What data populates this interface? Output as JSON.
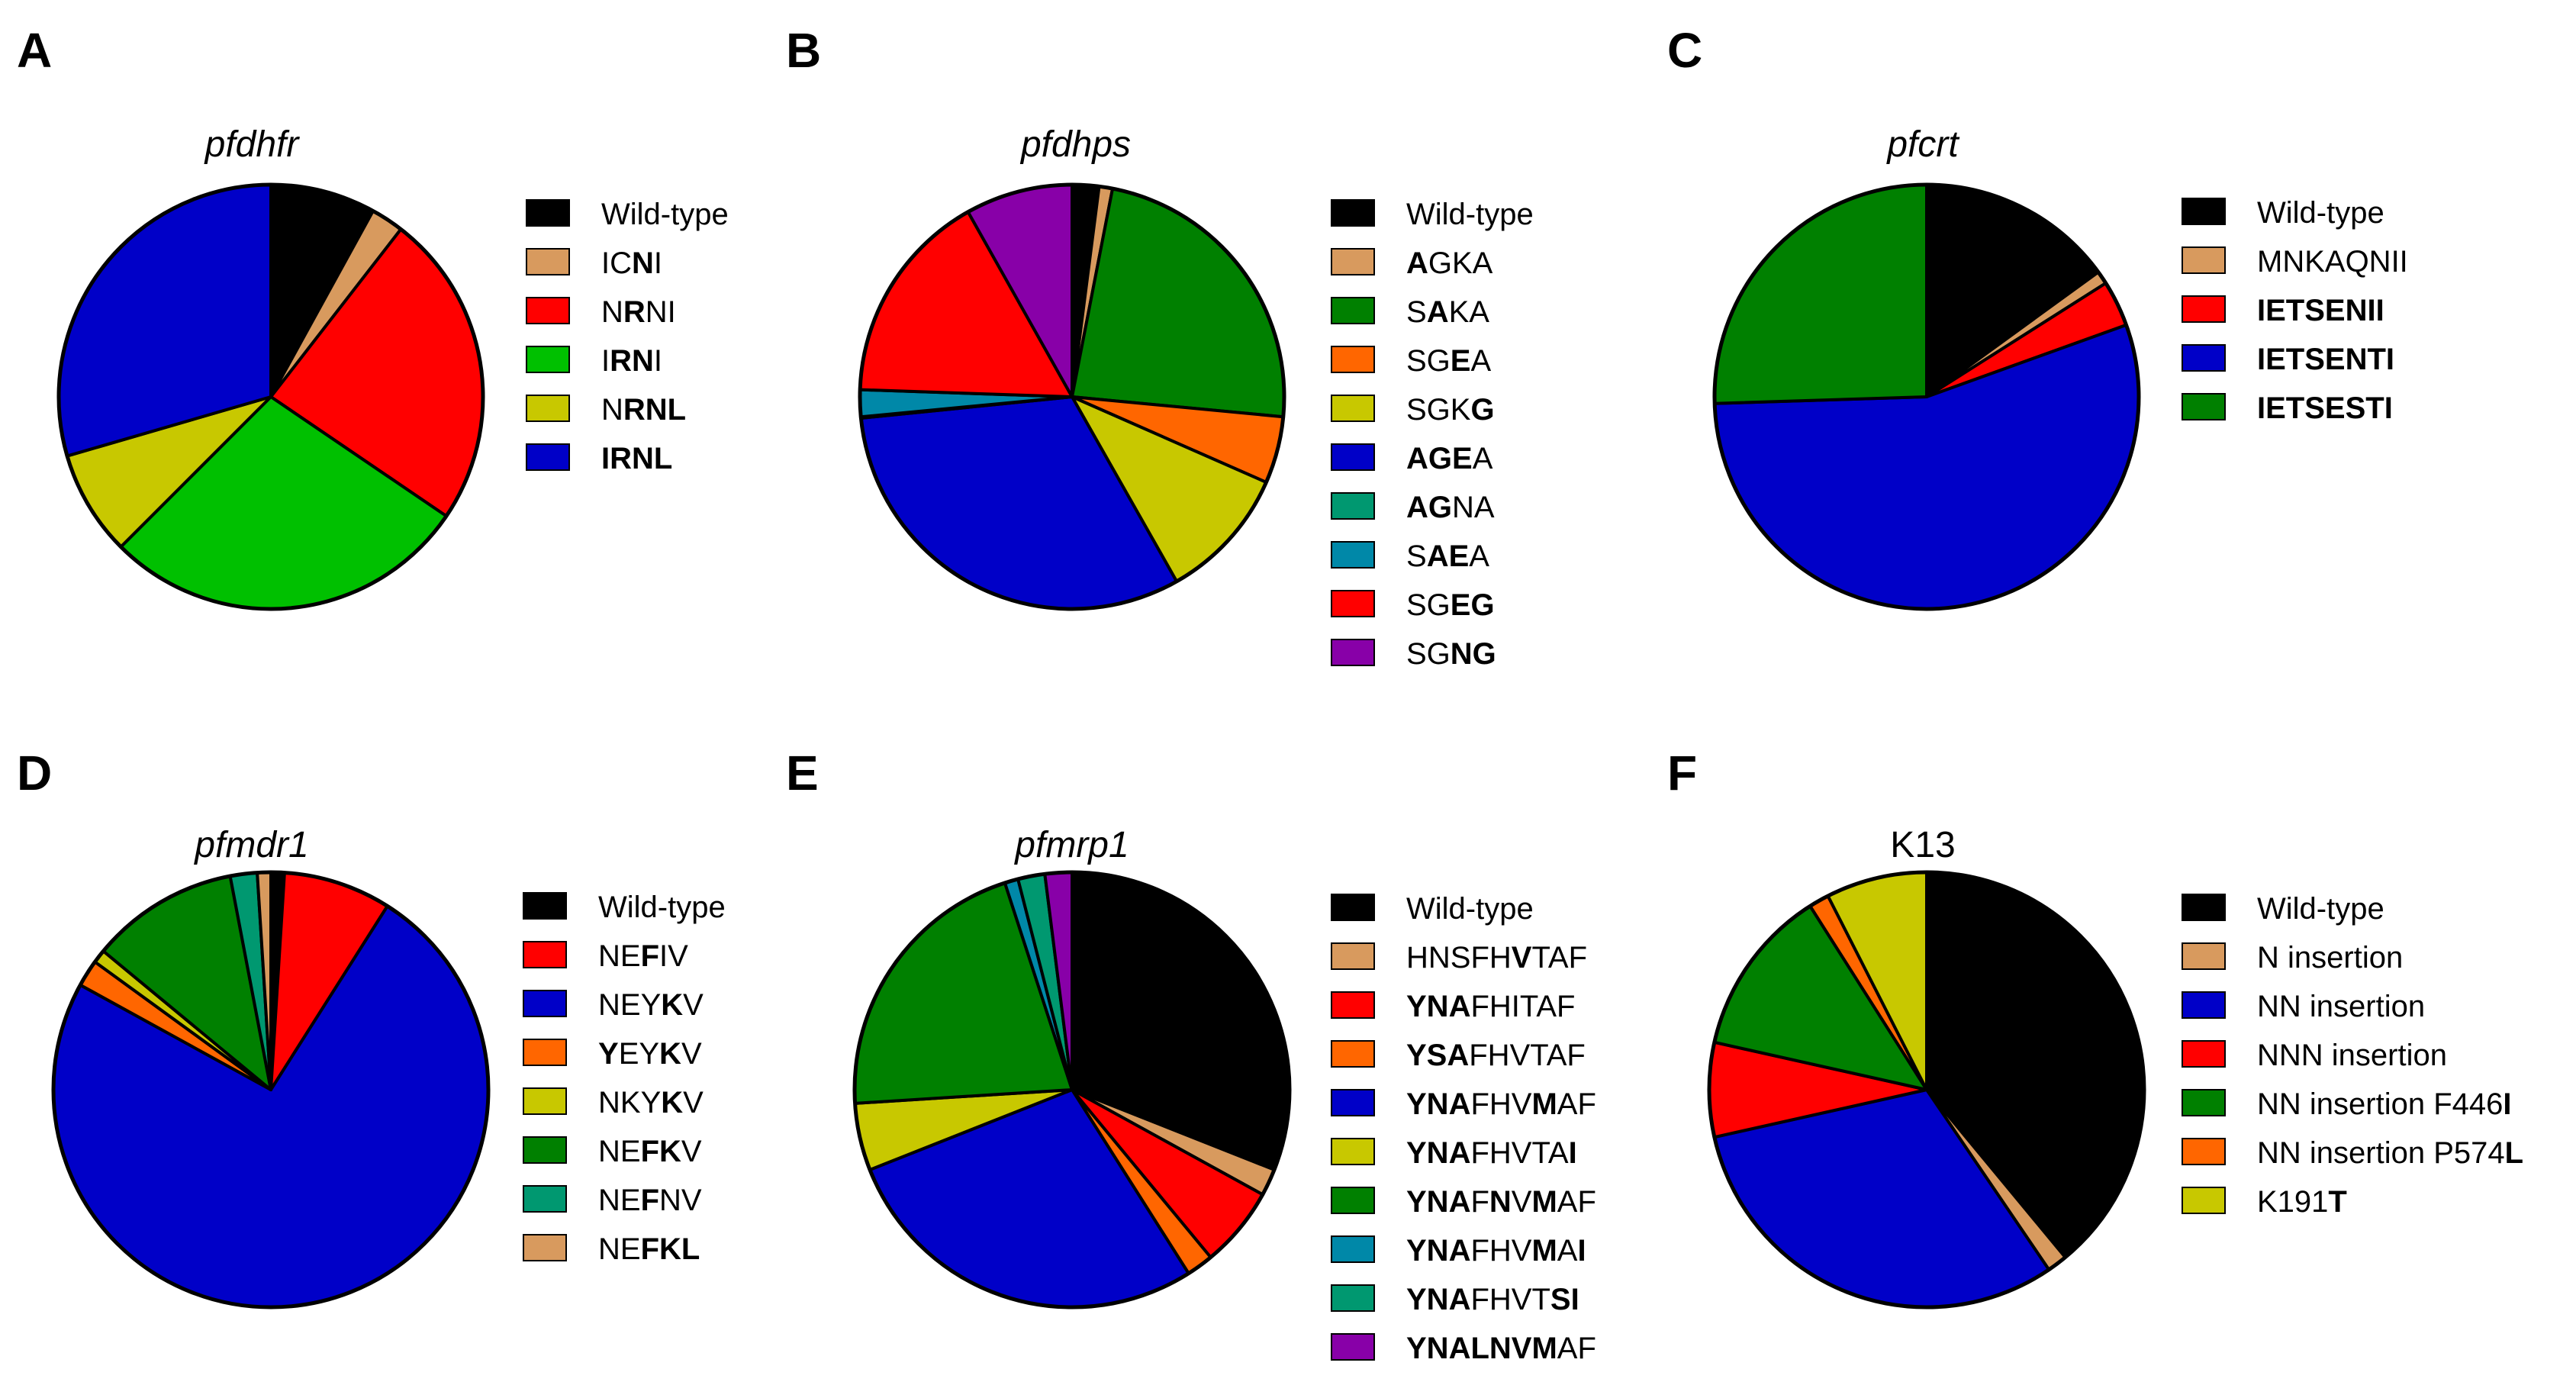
{
  "chart_data": [
    {
      "type": "pie",
      "panel": "A",
      "title": "pfdhfr",
      "title_italic": true,
      "slices": [
        {
          "label": "Wild-type",
          "parts": [
            [
              "Wild-type",
              false
            ]
          ],
          "value": 8,
          "color": "#000000"
        },
        {
          "label": "ICNI",
          "parts": [
            [
              "IC",
              false
            ],
            [
              "N",
              true
            ],
            [
              "I",
              false
            ]
          ],
          "value": 2.5,
          "color": "#D89A5E"
        },
        {
          "label": "NRNI",
          "parts": [
            [
              "N",
              false
            ],
            [
              "R",
              true
            ],
            [
              "NI",
              false
            ]
          ],
          "value": 24,
          "color": "#FF0000"
        },
        {
          "label": "IRNI",
          "parts": [
            [
              "I",
              false
            ],
            [
              "RN",
              true
            ],
            [
              "I",
              false
            ]
          ],
          "value": 28,
          "color": "#00C000"
        },
        {
          "label": "NRNL",
          "parts": [
            [
              "N",
              false
            ],
            [
              "RNL",
              true
            ]
          ],
          "value": 8,
          "color": "#C8C800"
        },
        {
          "label": "IRNL",
          "parts": [
            [
              "IRNL",
              true
            ]
          ],
          "value": 29.5,
          "color": "#0000C8"
        }
      ]
    },
    {
      "type": "pie",
      "panel": "B",
      "title": "pfdhps",
      "title_italic": true,
      "slices": [
        {
          "label": "Wild-type",
          "parts": [
            [
              "Wild-type",
              false
            ]
          ],
          "value": 2,
          "color": "#000000"
        },
        {
          "label": "AGKA",
          "parts": [
            [
              "A",
              true
            ],
            [
              "GKA",
              false
            ]
          ],
          "value": 1,
          "color": "#D89A5E"
        },
        {
          "label": "SAKA",
          "parts": [
            [
              "S",
              false
            ],
            [
              "A",
              true
            ],
            [
              "KA",
              false
            ]
          ],
          "value": 23,
          "color": "#008000"
        },
        {
          "label": "SGEA",
          "parts": [
            [
              "SG",
              false
            ],
            [
              "E",
              true
            ],
            [
              "A",
              false
            ]
          ],
          "value": 5,
          "color": "#FF6600"
        },
        {
          "label": "SGKG",
          "parts": [
            [
              "SGK",
              false
            ],
            [
              "G",
              true
            ]
          ],
          "value": 10,
          "color": "#C8C800"
        },
        {
          "label": "AGEA",
          "parts": [
            [
              "AGE",
              true
            ],
            [
              "A",
              false
            ]
          ],
          "value": 31,
          "color": "#0000C8"
        },
        {
          "label": "AGNA",
          "parts": [
            [
              "AG",
              true
            ],
            [
              "NA",
              false
            ]
          ],
          "value": 0.1,
          "color": "#009870"
        },
        {
          "label": "SAEA",
          "parts": [
            [
              "S",
              false
            ],
            [
              "AE",
              true
            ],
            [
              "A",
              false
            ]
          ],
          "value": 2,
          "color": "#0088A8"
        },
        {
          "label": "SGEG",
          "parts": [
            [
              "SG",
              false
            ],
            [
              "EG",
              true
            ]
          ],
          "value": 16,
          "color": "#FF0000"
        },
        {
          "label": "SGNG",
          "parts": [
            [
              "SG",
              false
            ],
            [
              "NG",
              true
            ]
          ],
          "value": 8,
          "color": "#8800A8"
        }
      ]
    },
    {
      "type": "pie",
      "panel": "C",
      "title": "pfcrt",
      "title_italic": true,
      "slices": [
        {
          "label": "Wild-type",
          "parts": [
            [
              "Wild-type",
              false
            ]
          ],
          "value": 15,
          "color": "#000000"
        },
        {
          "label": "MNKAQNII",
          "parts": [
            [
              "MNKAQNII",
              false
            ]
          ],
          "value": 1,
          "color": "#D89A5E"
        },
        {
          "label": "IETSENII",
          "parts": [
            [
              "IETSENII",
              true
            ]
          ],
          "value": 3.5,
          "color": "#FF0000"
        },
        {
          "label": "IETSENTI",
          "parts": [
            [
              "IETSENTI",
              true
            ]
          ],
          "value": 55,
          "color": "#0000C8"
        },
        {
          "label": "IETSESTI",
          "parts": [
            [
              "IETSESTI",
              true
            ]
          ],
          "value": 25.5,
          "color": "#008000"
        }
      ]
    },
    {
      "type": "pie",
      "panel": "D",
      "title": "pfmdr1",
      "title_italic": true,
      "slices": [
        {
          "label": "Wild-type",
          "parts": [
            [
              "Wild-type",
              false
            ]
          ],
          "value": 1,
          "color": "#000000"
        },
        {
          "label": "NEFIV",
          "parts": [
            [
              "NE",
              false
            ],
            [
              "F",
              true
            ],
            [
              "IV",
              false
            ]
          ],
          "value": 8,
          "color": "#FF0000"
        },
        {
          "label": "NEYKV",
          "parts": [
            [
              "NEY",
              false
            ],
            [
              "K",
              true
            ],
            [
              "V",
              false
            ]
          ],
          "value": 74,
          "color": "#0000C8"
        },
        {
          "label": "YEYKV",
          "parts": [
            [
              "Y",
              true
            ],
            [
              "EY",
              false
            ],
            [
              "K",
              true
            ],
            [
              "V",
              false
            ]
          ],
          "value": 2,
          "color": "#FF6600"
        },
        {
          "label": "NKYKV",
          "parts": [
            [
              "NKY",
              false
            ],
            [
              "K",
              true
            ],
            [
              "V",
              false
            ]
          ],
          "value": 1,
          "color": "#C8C800"
        },
        {
          "label": "NEFKV",
          "parts": [
            [
              "NE",
              false
            ],
            [
              "FK",
              true
            ],
            [
              "V",
              false
            ]
          ],
          "value": 11,
          "color": "#008000"
        },
        {
          "label": "NEFNV",
          "parts": [
            [
              "NE",
              false
            ],
            [
              "F",
              true
            ],
            [
              "NV",
              false
            ]
          ],
          "value": 2,
          "color": "#009870"
        },
        {
          "label": "NEFKL",
          "parts": [
            [
              "NE",
              false
            ],
            [
              "FKL",
              true
            ]
          ],
          "value": 1,
          "color": "#D89A5E"
        }
      ]
    },
    {
      "type": "pie",
      "panel": "E",
      "title": "pfmrp1",
      "title_italic": true,
      "slices": [
        {
          "label": "Wild-type",
          "parts": [
            [
              "Wild-type",
              false
            ]
          ],
          "value": 31,
          "color": "#000000"
        },
        {
          "label": "HNSFHVTAF",
          "parts": [
            [
              "HNSFH",
              false
            ],
            [
              "V",
              true
            ],
            [
              "TAF",
              false
            ]
          ],
          "value": 2,
          "color": "#D89A5E"
        },
        {
          "label": "YNAFHITAF",
          "parts": [
            [
              "YNA",
              true
            ],
            [
              "FHITAF",
              false
            ]
          ],
          "value": 6,
          "color": "#FF0000"
        },
        {
          "label": "YSAFHVTAF",
          "parts": [
            [
              "YSA",
              true
            ],
            [
              "FHVTAF",
              false
            ]
          ],
          "value": 2,
          "color": "#FF6600"
        },
        {
          "label": "YNAFHVMAF",
          "parts": [
            [
              "YNA",
              true
            ],
            [
              "FHV",
              false
            ],
            [
              "M",
              true
            ],
            [
              "AF",
              false
            ]
          ],
          "value": 28,
          "color": "#0000C8"
        },
        {
          "label": "YNAFHVTAI",
          "parts": [
            [
              "YNA",
              true
            ],
            [
              "FHVTA",
              false
            ],
            [
              "I",
              true
            ]
          ],
          "value": 5,
          "color": "#C8C800"
        },
        {
          "label": "YNAFNVMAF",
          "parts": [
            [
              "YNA",
              true
            ],
            [
              "F",
              false
            ],
            [
              "N",
              true
            ],
            [
              "V",
              false
            ],
            [
              "M",
              true
            ],
            [
              "AF",
              false
            ]
          ],
          "value": 21,
          "color": "#008000"
        },
        {
          "label": "YNAFHVMAI",
          "parts": [
            [
              "YNA",
              true
            ],
            [
              "FHV",
              false
            ],
            [
              "M",
              true
            ],
            [
              "A",
              false
            ],
            [
              "I",
              true
            ]
          ],
          "value": 1,
          "color": "#0088A8"
        },
        {
          "label": "YNAFHVTSI",
          "parts": [
            [
              "YNA",
              true
            ],
            [
              "FHVT",
              false
            ],
            [
              "SI",
              true
            ]
          ],
          "value": 2,
          "color": "#009870"
        },
        {
          "label": "YNALNVMAF",
          "parts": [
            [
              "YNALNVM",
              true
            ],
            [
              "AF",
              false
            ]
          ],
          "value": 2,
          "color": "#8800A8"
        }
      ]
    },
    {
      "type": "pie",
      "panel": "F",
      "title": "K13",
      "title_italic": false,
      "slices": [
        {
          "label": "Wild-type",
          "parts": [
            [
              "Wild-type",
              false
            ]
          ],
          "value": 39,
          "color": "#000000"
        },
        {
          "label": "N insertion",
          "parts": [
            [
              "N insertion",
              false
            ]
          ],
          "value": 1.5,
          "color": "#D89A5E"
        },
        {
          "label": "NN insertion",
          "parts": [
            [
              "NN insertion",
              false
            ]
          ],
          "value": 31,
          "color": "#0000C8"
        },
        {
          "label": "NNN insertion",
          "parts": [
            [
              "NNN insertion",
              false
            ]
          ],
          "value": 7,
          "color": "#FF0000"
        },
        {
          "label": "NN insertion  F446I",
          "parts": [
            [
              "NN insertion  F446",
              false
            ],
            [
              "I",
              true
            ]
          ],
          "value": 12.5,
          "color": "#008000"
        },
        {
          "label": "NN insertion P574L",
          "parts": [
            [
              "NN insertion P574",
              false
            ],
            [
              "L",
              true
            ]
          ],
          "value": 1.5,
          "color": "#FF6600"
        },
        {
          "label": "K191T",
          "parts": [
            [
              "K191",
              false
            ],
            [
              "T",
              true
            ]
          ],
          "value": 7.5,
          "color": "#C8C800"
        }
      ]
    }
  ]
}
